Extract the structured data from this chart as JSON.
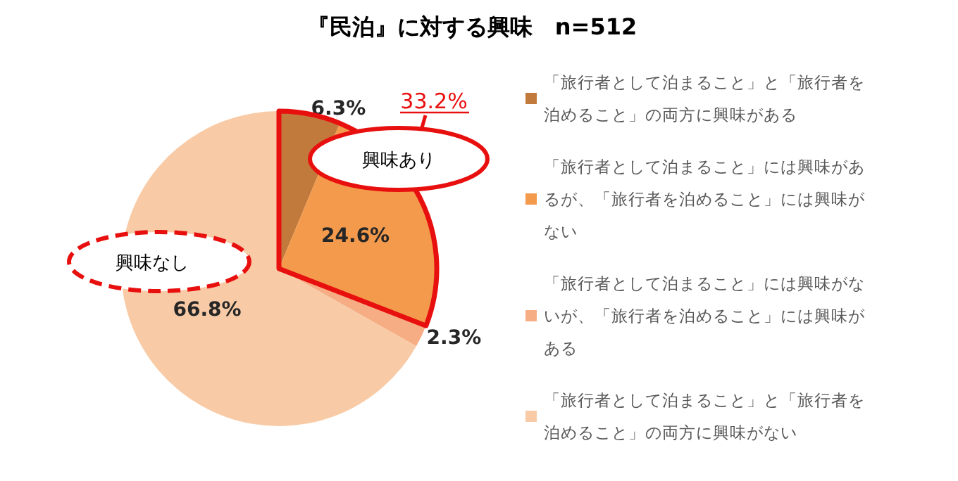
{
  "chart_data": {
    "type": "pie",
    "title": "『民泊』に対する興味　n=512",
    "categories": [
      "「旅行者として泊まること」と「旅行者を泊めること」の両方に興味がある",
      "「旅行者として泊まること」には興味があるが、「旅行者を泊めること」には興味がない",
      "「旅行者として泊まること」には興味がないが、「旅行者を泊めること」には興味がある",
      "「旅行者として泊まること」と「旅行者を泊めること」の両方に興味がない"
    ],
    "values": [
      6.3,
      24.6,
      2.3,
      66.8
    ],
    "colors": [
      "#c27a3c",
      "#f39a4c",
      "#f6ad84",
      "#f8cba6"
    ],
    "value_labels": [
      "6.3%",
      "24.6%",
      "2.3%",
      "66.8%"
    ],
    "annotations": [
      "33.2%",
      "興味あり",
      "興味なし"
    ],
    "legend": "right"
  }
}
